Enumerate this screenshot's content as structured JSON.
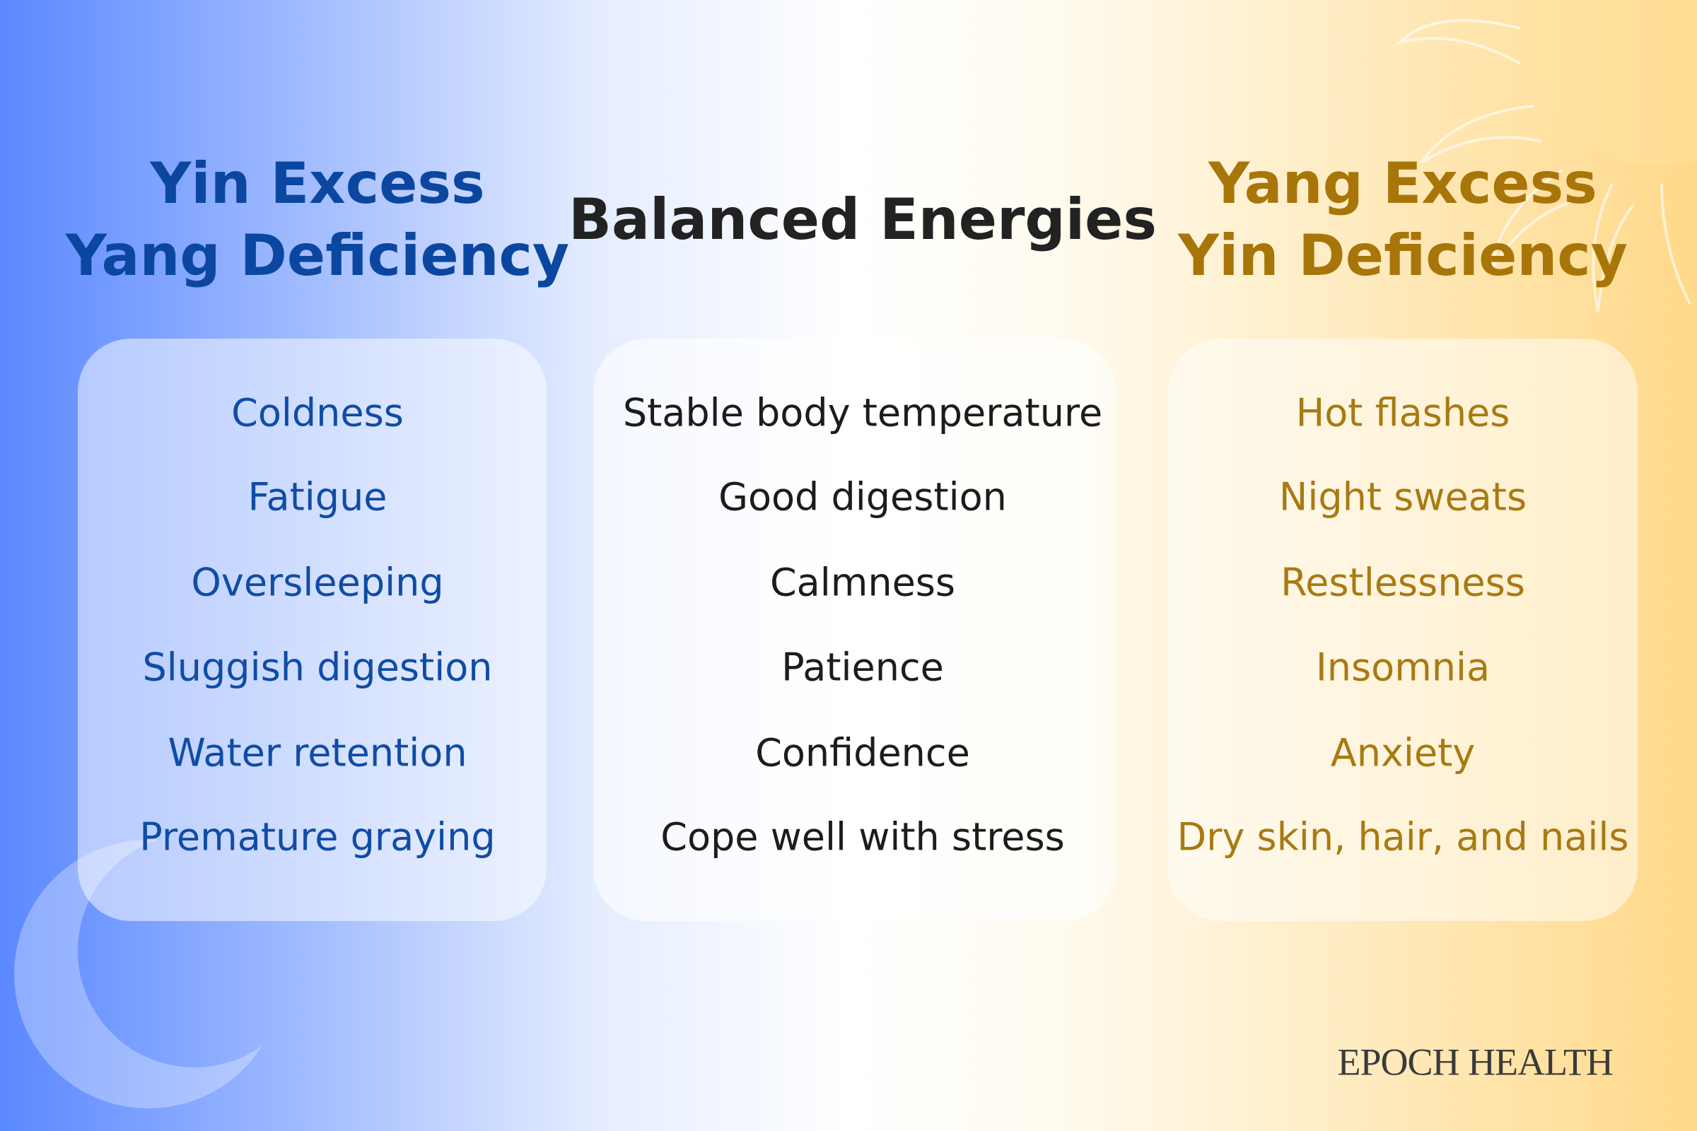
{
  "columns": [
    {
      "title": [
        "Yin Excess",
        "Yang Deficiency"
      ],
      "items": [
        "Coldness",
        "Fatigue",
        "Oversleeping",
        "Sluggish digestion",
        "Water retention",
        "Premature graying"
      ]
    },
    {
      "title": [
        "Balanced Energies"
      ],
      "items": [
        "Stable body temperature",
        "Good digestion",
        "Calmness",
        "Patience",
        "Confidence",
        "Cope well with stress"
      ]
    },
    {
      "title": [
        "Yang Excess",
        "Yin Deficiency"
      ],
      "items": [
        "Hot flashes",
        "Night sweats",
        "Restlessness",
        "Insomnia",
        "Anxiety",
        "Dry skin, hair, and nails"
      ]
    }
  ],
  "brand": "EPOCH HEALTH"
}
